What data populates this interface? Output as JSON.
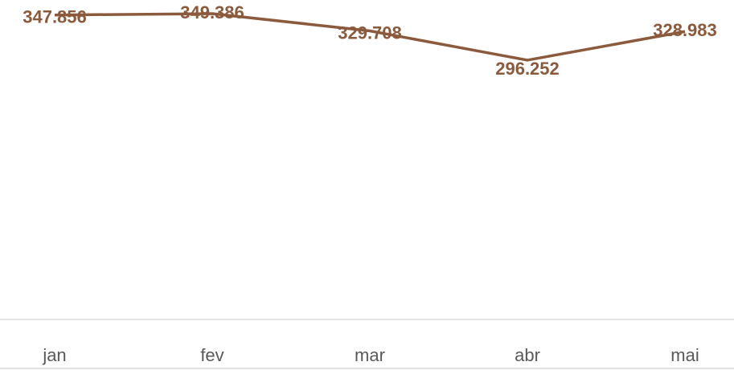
{
  "chart_data": {
    "type": "line",
    "categories": [
      "jan",
      "fev",
      "mar",
      "abr",
      "mai"
    ],
    "series": [
      {
        "name": null,
        "color": "#8b5a3c",
        "values": [
          347.856,
          349.386,
          329.708,
          296.252,
          328.983
        ]
      }
    ],
    "ylim": [
      0,
      365
    ]
  }
}
